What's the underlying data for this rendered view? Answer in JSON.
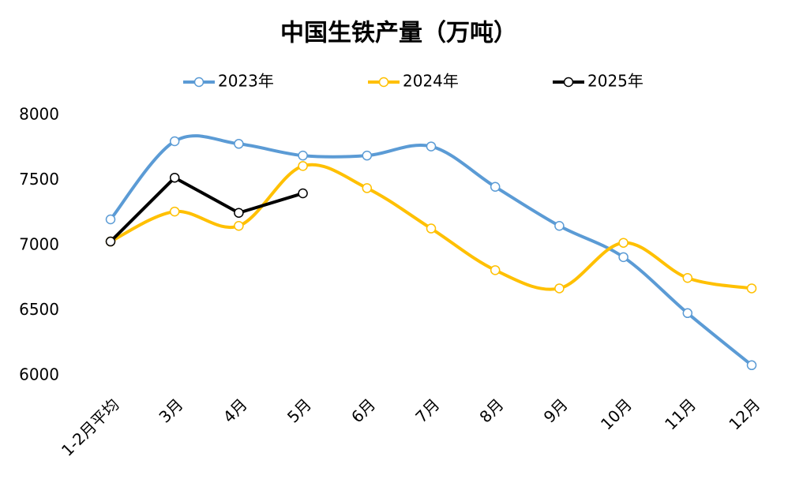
{
  "chart_data": {
    "type": "line",
    "title": "中国生铁产量（万吨）",
    "categories": [
      "1-2月平均",
      "3月",
      "4月",
      "5月",
      "6月",
      "7月",
      "8月",
      "9月",
      "10月",
      "11月",
      "12月"
    ],
    "series": [
      {
        "name": "2023年",
        "color": "#5b9bd5",
        "smooth": true,
        "values": [
          7200,
          7800,
          7780,
          7690,
          7690,
          7760,
          7450,
          7150,
          6910,
          6480,
          6080
        ]
      },
      {
        "name": "2024年",
        "color": "#ffc000",
        "smooth": true,
        "values": [
          7030,
          7260,
          7150,
          7610,
          7440,
          7130,
          6810,
          6670,
          7020,
          6750,
          6670
        ]
      },
      {
        "name": "2025年",
        "color": "#000000",
        "smooth": false,
        "values": [
          7030,
          7520,
          7250,
          7400,
          null,
          null,
          null,
          null,
          null,
          null,
          null
        ]
      }
    ],
    "ylim": [
      6000,
      8000
    ],
    "yticks": [
      6000,
      6500,
      7000,
      7500,
      8000
    ],
    "grid": false,
    "legend": "top"
  }
}
